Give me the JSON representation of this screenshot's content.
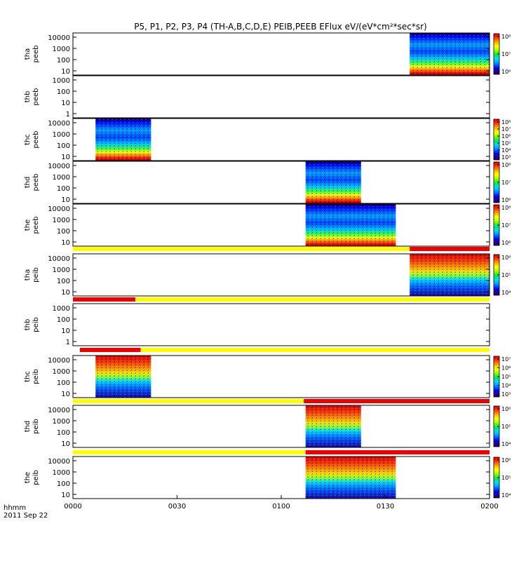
{
  "title": "P5, P1, P2, P3, P4 (TH-A,B,C,D,E) PEIB,PEEB EFlux eV/(eV*cm²*sec*sr)",
  "footer": {
    "time_label": "hhmm",
    "date_label": "2011 Sep 22"
  },
  "x_axis": {
    "ticks": [
      {
        "label": "0000",
        "value_min": 0
      },
      {
        "label": "0030",
        "value_min": 30
      },
      {
        "label": "0100",
        "value_min": 60
      },
      {
        "label": "0130",
        "value_min": 90
      },
      {
        "label": "0200",
        "value_min": 120
      }
    ],
    "range_min": [
      0,
      120
    ]
  },
  "chart_data": [
    {
      "type": "heatmap",
      "probe": "tha",
      "product": "peeb",
      "ylabel": [
        "tha",
        "peeb"
      ],
      "yticks": [
        "10",
        "100",
        "1000",
        "10000"
      ],
      "coverage_min": [
        97,
        120
      ],
      "colorbar": {
        "ticks": [
          "10⁸",
          "10⁷",
          "10⁶"
        ]
      },
      "quality_bar": null
    },
    {
      "type": "heatmap",
      "probe": "thb",
      "product": "peeb",
      "ylabel": [
        "thb",
        "peeb"
      ],
      "yticks": [
        "1",
        "10",
        "100",
        "1000"
      ],
      "coverage_min": null,
      "colorbar": null,
      "quality_bar": null
    },
    {
      "type": "heatmap",
      "probe": "thc",
      "product": "peeb",
      "ylabel": [
        "thc",
        "peeb"
      ],
      "yticks": [
        "10",
        "100",
        "1000",
        "10000"
      ],
      "coverage_min": [
        6.5,
        22.5
      ],
      "colorbar": {
        "ticks": [
          "10⁸",
          "10⁷",
          "10⁶",
          "10⁵",
          "10⁴",
          "10³"
        ]
      },
      "quality_bar": null
    },
    {
      "type": "heatmap",
      "probe": "thd",
      "product": "peeb",
      "ylabel": [
        "thd",
        "peeb"
      ],
      "yticks": [
        "10",
        "100",
        "1000",
        "10000"
      ],
      "coverage_min": [
        67,
        83
      ],
      "colorbar": {
        "ticks": [
          "10⁸",
          "10⁷",
          "10⁶"
        ]
      },
      "quality_bar": null
    },
    {
      "type": "heatmap",
      "probe": "the",
      "product": "peeb",
      "ylabel": [
        "the",
        "peeb"
      ],
      "yticks": [
        "10",
        "100",
        "1000",
        "10000"
      ],
      "coverage_min": [
        67,
        93
      ],
      "colorbar": {
        "ticks": [
          "10⁸",
          "10⁷",
          "10⁶"
        ]
      },
      "quality_bar": null
    },
    {
      "type": "heatmap",
      "probe": "tha",
      "product": "peib",
      "ylabel": [
        "tha",
        "peib"
      ],
      "yticks": [
        "10",
        "100",
        "1000",
        "10000"
      ],
      "coverage_min": [
        97,
        120
      ],
      "colorbar": {
        "ticks": [
          "10⁶",
          "10⁵",
          "10⁴"
        ]
      },
      "quality_bar": [
        {
          "from": 0,
          "to": 97,
          "flag": "yellow"
        },
        {
          "from": 97,
          "to": 120,
          "flag": "red"
        }
      ]
    },
    {
      "type": "heatmap",
      "probe": "thb",
      "product": "peib",
      "ylabel": [
        "thb",
        "peib"
      ],
      "yticks": [
        "1",
        "10",
        "100",
        "1000"
      ],
      "coverage_min": null,
      "colorbar": null,
      "quality_bar": [
        {
          "from": 0,
          "to": 18,
          "flag": "red"
        },
        {
          "from": 18,
          "to": 120,
          "flag": "yellow"
        }
      ]
    },
    {
      "type": "heatmap",
      "probe": "thc",
      "product": "peib",
      "ylabel": [
        "thc",
        "peib"
      ],
      "yticks": [
        "10",
        "100",
        "1000",
        "10000"
      ],
      "coverage_min": [
        6.5,
        22.5
      ],
      "colorbar": {
        "ticks": [
          "10⁷",
          "10⁶",
          "10⁵",
          "10⁴",
          "10³"
        ]
      },
      "quality_bar": [
        {
          "from": 2,
          "to": 19.5,
          "flag": "red"
        },
        {
          "from": 19.5,
          "to": 120,
          "flag": "yellow"
        }
      ]
    },
    {
      "type": "heatmap",
      "probe": "thd",
      "product": "peib",
      "ylabel": [
        "thd",
        "peib"
      ],
      "yticks": [
        "10",
        "100",
        "1000",
        "10000"
      ],
      "coverage_min": [
        67,
        83
      ],
      "colorbar": {
        "ticks": [
          "10⁶",
          "10⁵",
          "10⁴"
        ]
      },
      "quality_bar": [
        {
          "from": 0,
          "to": 66.5,
          "flag": "yellow"
        },
        {
          "from": 66.5,
          "to": 120,
          "flag": "red"
        }
      ]
    },
    {
      "type": "heatmap",
      "probe": "the",
      "product": "peib",
      "ylabel": [
        "the",
        "peib"
      ],
      "yticks": [
        "10",
        "100",
        "1000",
        "10000"
      ],
      "coverage_min": [
        67,
        93
      ],
      "colorbar": {
        "ticks": [
          "10⁶",
          "10⁵",
          "10⁴"
        ]
      },
      "quality_bar": [
        {
          "from": 0,
          "to": 67,
          "flag": "yellow"
        },
        {
          "from": 67,
          "to": 120,
          "flag": "red"
        }
      ]
    }
  ],
  "colors": {
    "flag_yellow": "#ffff00",
    "flag_red": "#ee0000",
    "colormap": [
      "#1a0040",
      "#2a00a0",
      "#0000ff",
      "#0060ff",
      "#00b0ff",
      "#00e0e0",
      "#00e080",
      "#40ff00",
      "#c0ff00",
      "#ffff00",
      "#ffc000",
      "#ff7000",
      "#ff2000",
      "#e00000"
    ]
  }
}
